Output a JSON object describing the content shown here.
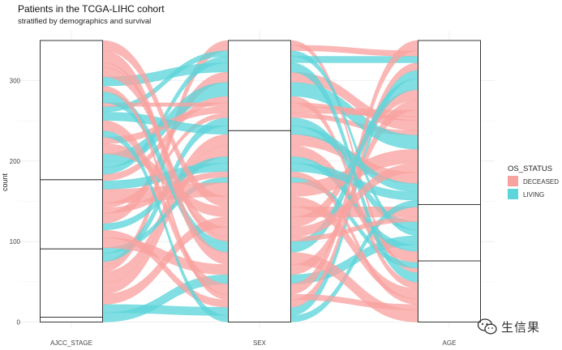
{
  "chart_data": {
    "type": "alluvial",
    "title": "Patients in the TCGA-LIHC cohort",
    "subtitle": "stratified by demographics and survival",
    "ylabel": "count",
    "ylim": [
      0,
      350
    ],
    "y_ticks": [
      0,
      100,
      200,
      300
    ],
    "axes": [
      "AJCC_STAGE",
      "SEX",
      "AGE"
    ],
    "strata": {
      "AJCC_STAGE": [
        6,
        85,
        86,
        173
      ],
      "SEX": [
        238,
        112
      ],
      "AGE": [
        76,
        70,
        204
      ]
    },
    "fill_variable": "OS_STATUS",
    "legend": {
      "title": "OS_STATUS",
      "position": "right",
      "entries": [
        {
          "label": "DECEASED",
          "color": "#F8A3A0"
        },
        {
          "label": "LIVING",
          "color": "#5DD5DA"
        }
      ]
    },
    "grid": true
  },
  "watermark": {
    "text": "生信果",
    "icon": "wechat-logo-icon"
  }
}
